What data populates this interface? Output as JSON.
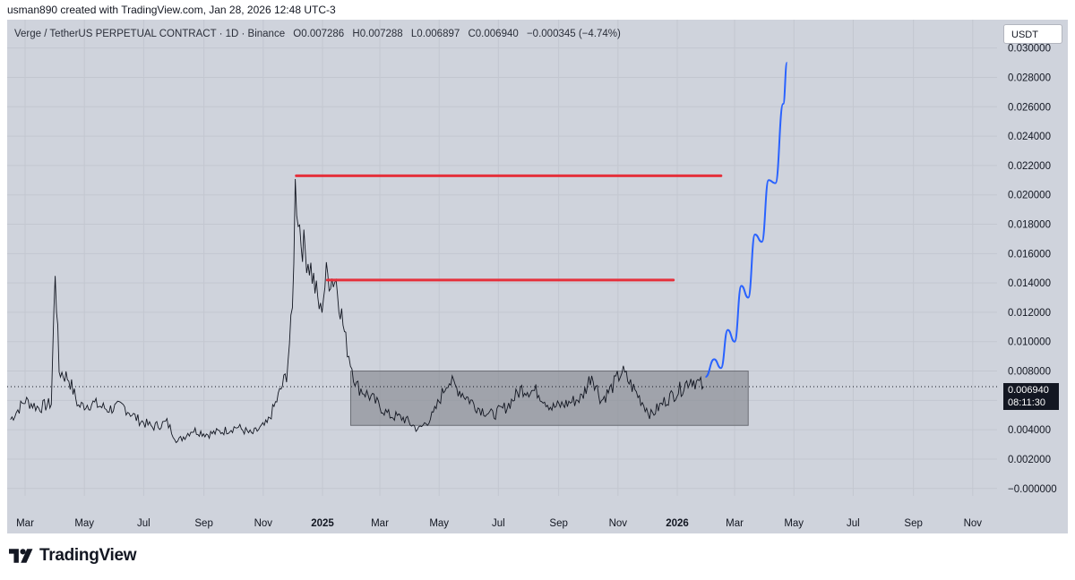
{
  "credit": "usman890 created with TradingView.com, Jan 28, 2026 12:48 UTC-3",
  "header": {
    "symbol": "Verge / TetherUS PERPETUAL CONTRACT · 1D · Binance",
    "open": "O0.007286",
    "high": "H0.007288",
    "low": "L0.006897",
    "close": "C0.006940",
    "change": "−0.000345 (−4.74%)"
  },
  "currency_button": "USDT",
  "price_badge": {
    "price": "0.006940",
    "countdown": "08:11:30"
  },
  "footer": {
    "brand": "TradingView"
  },
  "colors": {
    "background": "#cfd3dc",
    "candles": "#131722",
    "resistance": "#e5303b",
    "projection": "#2962ff",
    "range_box": "#8c8f96"
  },
  "chart_data": {
    "type": "line",
    "title": "Verge / TetherUS PERPETUAL CONTRACT · 1D · Binance",
    "x_ticks": [
      {
        "label": "Mar",
        "date": "2024-03"
      },
      {
        "label": "May",
        "date": "2024-05"
      },
      {
        "label": "Jul",
        "date": "2024-07"
      },
      {
        "label": "Sep",
        "date": "2024-09"
      },
      {
        "label": "Nov",
        "date": "2024-11"
      },
      {
        "label": "2025",
        "date": "2025-01"
      },
      {
        "label": "Mar",
        "date": "2025-03"
      },
      {
        "label": "May",
        "date": "2025-05"
      },
      {
        "label": "Jul",
        "date": "2025-07"
      },
      {
        "label": "Sep",
        "date": "2025-09"
      },
      {
        "label": "Nov",
        "date": "2025-11"
      },
      {
        "label": "2026",
        "date": "2026-01"
      },
      {
        "label": "Mar",
        "date": "2026-03"
      },
      {
        "label": "May",
        "date": "2026-05"
      },
      {
        "label": "Jul",
        "date": "2026-07"
      },
      {
        "label": "Sep",
        "date": "2026-09"
      },
      {
        "label": "Nov",
        "date": "2026-11"
      }
    ],
    "y_ticks": [
      "−0.000000",
      "0.002000",
      "0.004000",
      "0.006000",
      "0.008000",
      "0.010000",
      "0.012000",
      "0.014000",
      "0.016000",
      "0.018000",
      "0.020000",
      "0.022000",
      "0.024000",
      "0.026000",
      "0.028000",
      "0.030000"
    ],
    "y_tick_values": [
      0,
      0.002,
      0.004,
      0.006,
      0.008,
      0.01,
      0.012,
      0.014,
      0.016,
      0.018,
      0.02,
      0.022,
      0.024,
      0.026,
      0.028,
      0.03
    ],
    "ylim": [
      -0.0005,
      0.0301
    ],
    "current_price": 0.00694,
    "price_series": {
      "name": "",
      "points": [
        [
          "2024-02-15",
          0.0047
        ],
        [
          "2024-03-01",
          0.006
        ],
        [
          "2024-03-15",
          0.0055
        ],
        [
          "2024-03-28",
          0.0058
        ],
        [
          "2024-04-01",
          0.015
        ],
        [
          "2024-04-05",
          0.008
        ],
        [
          "2024-04-15",
          0.0075
        ],
        [
          "2024-04-25",
          0.0056
        ],
        [
          "2024-05-10",
          0.0058
        ],
        [
          "2024-05-25",
          0.0054
        ],
        [
          "2024-06-10",
          0.0056
        ],
        [
          "2024-06-25",
          0.0047
        ],
        [
          "2024-07-10",
          0.0042
        ],
        [
          "2024-07-25",
          0.0045
        ],
        [
          "2024-08-05",
          0.0032
        ],
        [
          "2024-08-20",
          0.004
        ],
        [
          "2024-09-05",
          0.0037
        ],
        [
          "2024-09-20",
          0.0039
        ],
        [
          "2024-10-05",
          0.0042
        ],
        [
          "2024-10-20",
          0.0037
        ],
        [
          "2024-11-05",
          0.0044
        ],
        [
          "2024-11-15",
          0.006
        ],
        [
          "2024-11-25",
          0.0078
        ],
        [
          "2024-12-01",
          0.012
        ],
        [
          "2024-12-04",
          0.0205
        ],
        [
          "2024-12-10",
          0.017
        ],
        [
          "2024-12-20",
          0.015
        ],
        [
          "2024-12-30",
          0.012
        ],
        [
          "2025-01-05",
          0.0145
        ],
        [
          "2025-01-15",
          0.0142
        ],
        [
          "2025-01-25",
          0.01
        ],
        [
          "2025-02-05",
          0.007
        ],
        [
          "2025-02-20",
          0.0062
        ],
        [
          "2025-03-10",
          0.005
        ],
        [
          "2025-03-25",
          0.0048
        ],
        [
          "2025-04-10",
          0.004
        ],
        [
          "2025-04-25",
          0.005
        ],
        [
          "2025-05-10",
          0.0074
        ],
        [
          "2025-05-25",
          0.0065
        ],
        [
          "2025-06-10",
          0.0055
        ],
        [
          "2025-06-25",
          0.005
        ],
        [
          "2025-07-10",
          0.0056
        ],
        [
          "2025-07-25",
          0.0068
        ],
        [
          "2025-08-10",
          0.0066
        ],
        [
          "2025-08-25",
          0.0055
        ],
        [
          "2025-09-10",
          0.0058
        ],
        [
          "2025-09-25",
          0.0062
        ],
        [
          "2025-10-05",
          0.0078
        ],
        [
          "2025-10-15",
          0.006
        ],
        [
          "2025-10-25",
          0.0068
        ],
        [
          "2025-11-05",
          0.008
        ],
        [
          "2025-11-20",
          0.0065
        ],
        [
          "2025-12-05",
          0.005
        ],
        [
          "2025-12-20",
          0.006
        ],
        [
          "2026-01-05",
          0.0068
        ],
        [
          "2026-01-15",
          0.0075
        ],
        [
          "2026-01-28",
          0.00694
        ]
      ]
    },
    "range_box": {
      "start": "2025-01-30",
      "end": "2026-03-15",
      "low": 0.0043,
      "high": 0.008
    },
    "resistance_lines": [
      {
        "start": "2024-12-05",
        "end": "2026-02-15",
        "price": 0.0213
      },
      {
        "start": "2025-01-06",
        "end": "2025-12-28",
        "price": 0.0142
      }
    ],
    "projection": {
      "points": [
        [
          "2026-01-30",
          0.0076
        ],
        [
          "2026-02-08",
          0.0088
        ],
        [
          "2026-02-15",
          0.0082
        ],
        [
          "2026-02-22",
          0.0108
        ],
        [
          "2026-03-01",
          0.01
        ],
        [
          "2026-03-08",
          0.0138
        ],
        [
          "2026-03-15",
          0.013
        ],
        [
          "2026-03-22",
          0.0173
        ],
        [
          "2026-03-29",
          0.0168
        ],
        [
          "2026-04-05",
          0.021
        ],
        [
          "2026-04-12",
          0.0208
        ],
        [
          "2026-04-20",
          0.0262
        ],
        [
          "2026-04-24",
          0.029
        ]
      ]
    }
  }
}
